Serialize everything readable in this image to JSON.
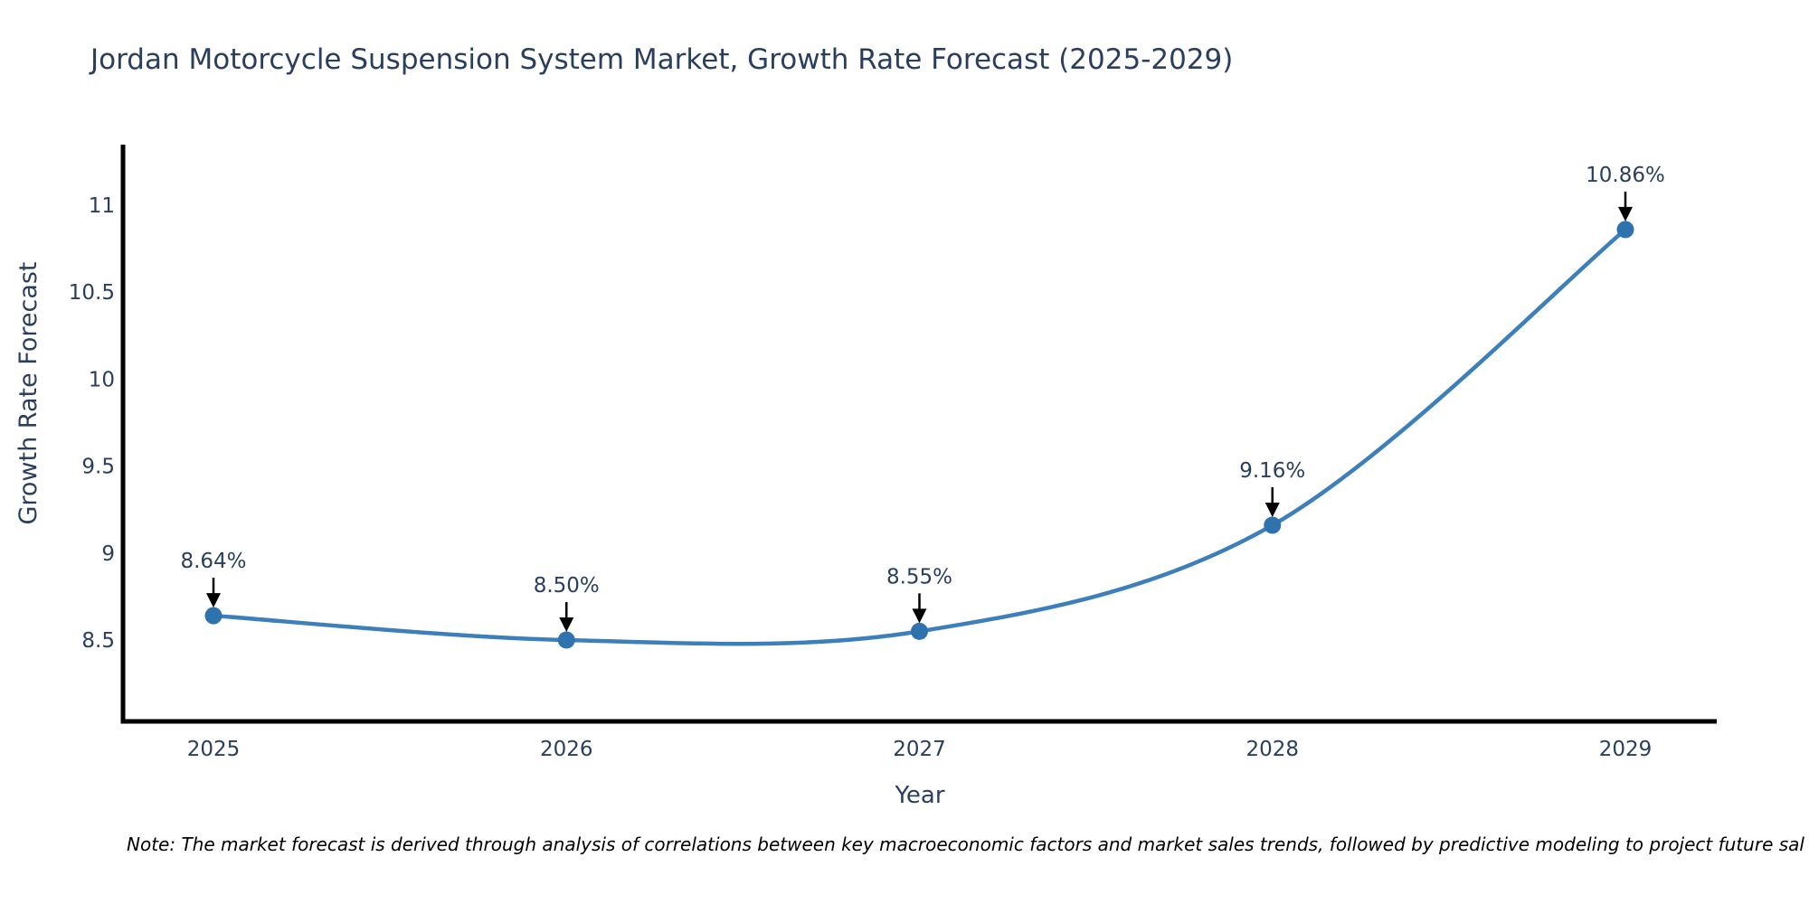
{
  "chart_data": {
    "type": "line",
    "title": "Jordan Motorcycle Suspension System Market, Growth Rate Forecast (2025-2029)",
    "xlabel": "Year",
    "ylabel": "Growth Rate Forecast",
    "x": [
      2025,
      2026,
      2027,
      2028,
      2029
    ],
    "y": [
      8.64,
      8.5,
      8.55,
      9.16,
      10.86
    ],
    "point_labels": [
      "8.64%",
      "8.50%",
      "8.55%",
      "9.16%",
      "10.86%"
    ],
    "xtick_labels": [
      "2025",
      "2026",
      "2027",
      "2028",
      "2029"
    ],
    "yticks": [
      8.5,
      9,
      9.5,
      10,
      10.5,
      11
    ],
    "ytick_labels": [
      "8.5",
      "9",
      "9.5",
      "10",
      "10.5",
      "11"
    ],
    "ylim": [
      8.02,
      11.35
    ],
    "line_shape": "spline",
    "grid": false,
    "legend": null,
    "colors": {
      "line": "#3d7fbb",
      "marker": "#2f73ae",
      "axis": "#000000",
      "text": "#2a3f5f",
      "annotation_arrow": "#000000",
      "note_text": "#000000"
    }
  },
  "note": {
    "text": "Note: The market forecast is derived through analysis of correlations between key macroeconomic factors and market sales trends, followed by predictive modeling to project future sal"
  }
}
